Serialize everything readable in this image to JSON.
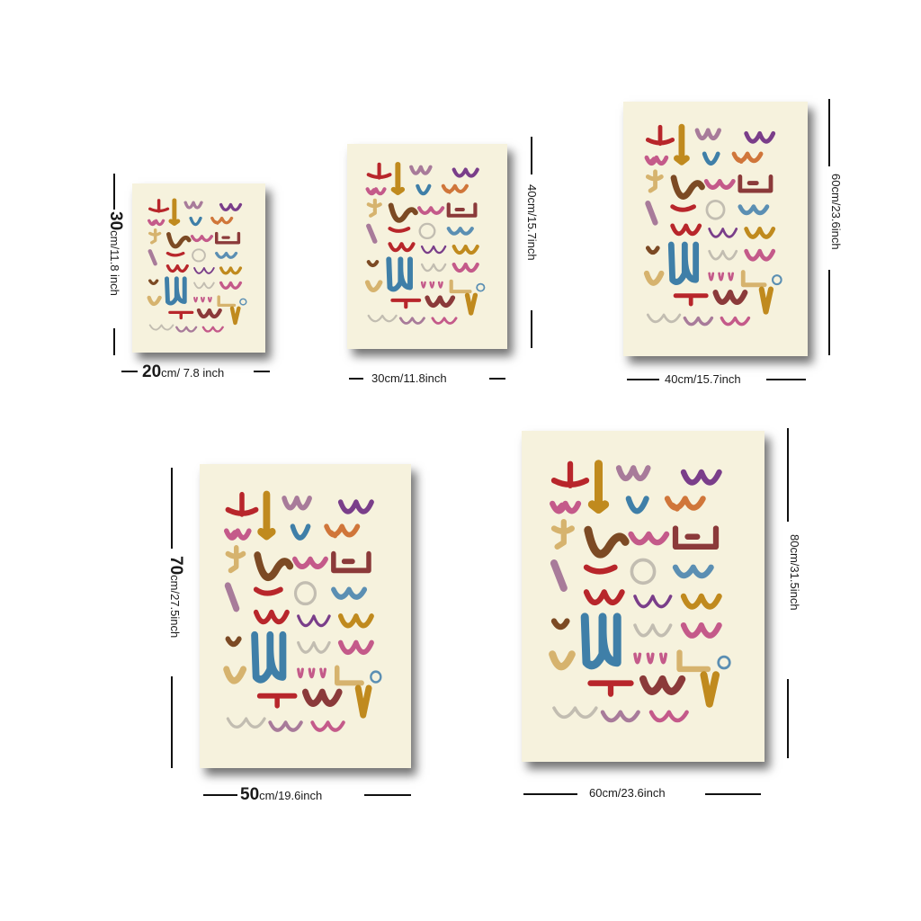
{
  "colors": {
    "background": "#ffffff",
    "poster": "#f6f2dd",
    "palette": [
      "#b8262b",
      "#c08a1e",
      "#7a3e8a",
      "#3f7fa8",
      "#d0763a",
      "#7c4a24",
      "#c45a8a",
      "#a87b9a",
      "#c2bdb1",
      "#d6b36e",
      "#8b3a3a",
      "#5b8fb3"
    ]
  },
  "sizes": [
    {
      "id": "s20x30",
      "width_main": "20",
      "width_rest": "cm/ 7.8 inch",
      "height_main": "30",
      "height_rest": "cm/11.8 inch"
    },
    {
      "id": "s30x40",
      "width_main": "",
      "width_rest": "30cm/11.8inch",
      "height_main": "",
      "height_rest": "40cm/15.7inch"
    },
    {
      "id": "s40x60",
      "width_main": "",
      "width_rest": "40cm/15.7inch",
      "height_main": "",
      "height_rest": "60cm/23.6inch"
    },
    {
      "id": "s50x70",
      "width_main": "50",
      "width_rest": "cm/19.6inch",
      "height_main": "70",
      "height_rest": "cm/27.5inch"
    },
    {
      "id": "s60x80",
      "width_main": "",
      "width_rest": "60cm/23.6inch",
      "height_main": "",
      "height_rest": "80cm/31.5inch"
    }
  ]
}
